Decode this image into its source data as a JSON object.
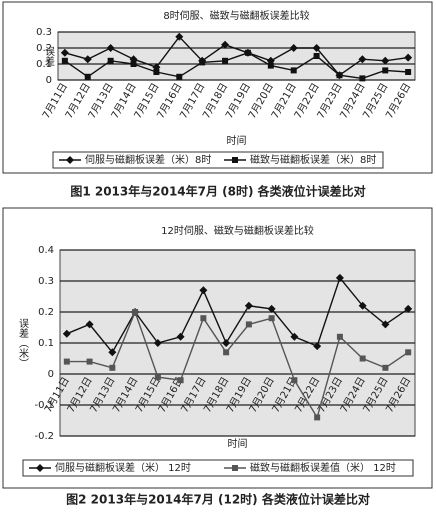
{
  "chart_data": [
    {
      "type": "line",
      "title": "8时伺服、磁致与磁翻板误差比较",
      "y_label": "误差",
      "x_label": "时间",
      "categories": [
        "7月11日",
        "7月12日",
        "7月13日",
        "7月14日",
        "7月15日",
        "7月16日",
        "7月17日",
        "7月18日",
        "7月19日",
        "7月20日",
        "7月21日",
        "7月22日",
        "7月23日",
        "7月24日",
        "7月25日",
        "7月26日"
      ],
      "series": [
        {
          "name": "伺服与磁翻板误差（米）8时",
          "color": "#111111",
          "marker": "diamond",
          "values": [
            0.17,
            0.13,
            0.2,
            0.13,
            0.08,
            0.27,
            0.12,
            0.22,
            0.17,
            0.12,
            0.2,
            0.2,
            0.03,
            0.13,
            0.12,
            0.14
          ]
        },
        {
          "name": "磁致与磁翻板误差（米）8时",
          "color": "#111111",
          "marker": "square",
          "values": [
            0.12,
            0.02,
            0.12,
            0.1,
            0.05,
            0.02,
            0.11,
            0.12,
            0.17,
            0.09,
            0.06,
            0.15,
            0.03,
            0.01,
            0.06,
            0.05
          ]
        }
      ],
      "ylim": [
        0,
        0.3
      ],
      "yticks": [
        0,
        0.1,
        0.2,
        0.3
      ],
      "grid": true,
      "caption": "图1  2013年与2014年7月 (8时) 各类液位计误差比对"
    },
    {
      "type": "line",
      "title": "12时伺服、磁致与磁翻板误差比较",
      "y_label": "误差（米）",
      "x_label": "时间",
      "categories": [
        "7月11日",
        "7月12日",
        "7月13日",
        "7月14日",
        "7月15日",
        "7月16日",
        "7月17日",
        "7月18日",
        "7月19日",
        "7月20日",
        "7月21日",
        "7月22日",
        "7月23日",
        "7月24日",
        "7月25日",
        "7月26日"
      ],
      "series": [
        {
          "name": "伺服与磁翻板误差（米）  12时",
          "color": "#111111",
          "marker": "diamond",
          "values": [
            0.13,
            0.16,
            0.07,
            0.2,
            0.1,
            0.12,
            0.27,
            0.1,
            0.22,
            0.21,
            0.12,
            0.09,
            0.31,
            0.22,
            0.16,
            0.21
          ]
        },
        {
          "name": "磁致与磁翻板误差值（米）  12时",
          "color": "#555555",
          "marker": "square",
          "values": [
            0.04,
            0.04,
            0.02,
            0.2,
            -0.01,
            -0.02,
            0.18,
            0.07,
            0.16,
            0.18,
            -0.02,
            -0.14,
            0.12,
            0.05,
            0.02,
            0.07
          ]
        }
      ],
      "ylim": [
        -0.2,
        0.4
      ],
      "yticks": [
        -0.2,
        -0.1,
        0,
        0.1,
        0.2,
        0.3,
        0.4
      ],
      "grid": true,
      "caption": "图2  2013年与2014年7月 (12时) 各类液位计误差比对"
    }
  ]
}
